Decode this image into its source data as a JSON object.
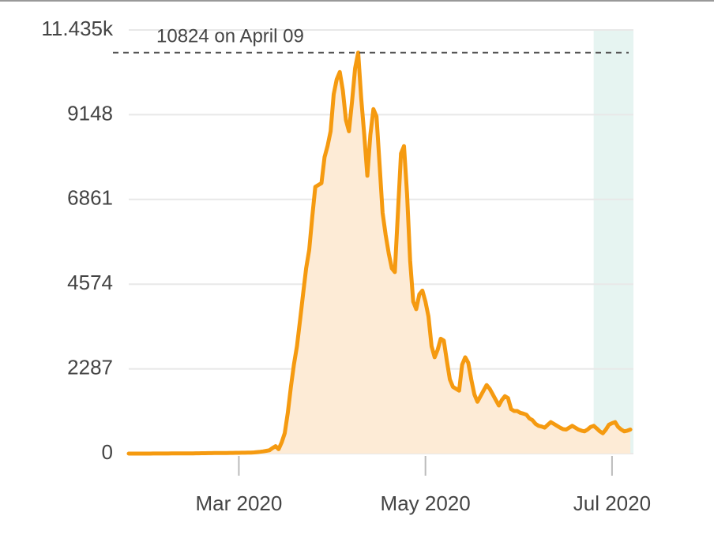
{
  "chart_data": {
    "type": "area-line",
    "annotation": {
      "text": "10824 on April 09",
      "value": 10824
    },
    "series": [
      {
        "color": "#f59a10",
        "fill": "#fdebd6",
        "values": [
          0,
          0,
          0,
          0,
          0,
          1,
          1,
          1,
          2,
          2,
          2,
          3,
          3,
          3,
          4,
          4,
          5,
          5,
          6,
          6,
          7,
          7,
          8,
          9,
          10,
          11,
          12,
          13,
          14,
          15,
          16,
          17,
          18,
          19,
          20,
          21,
          22,
          23,
          24,
          26,
          28,
          32,
          40,
          50,
          60,
          75,
          90,
          150,
          200,
          120,
          300,
          550,
          1100,
          1800,
          2400,
          2900,
          3600,
          4300,
          5000,
          5500,
          6400,
          7200,
          7250,
          7300,
          8000,
          8300,
          8700,
          9700,
          10100,
          10300,
          9800,
          9000,
          8700,
          9500,
          10400,
          10824,
          9600,
          8600,
          7500,
          8600,
          9300,
          9100,
          7800,
          6500,
          5900,
          5400,
          5000,
          4900,
          6500,
          8100,
          8300,
          7000,
          5200,
          4100,
          3900,
          4300,
          4400,
          4100,
          3700,
          2900,
          2600,
          2800,
          3100,
          3050,
          2500,
          2000,
          1800,
          1750,
          1700,
          2400,
          2600,
          2450,
          2000,
          1600,
          1400,
          1550,
          1700,
          1850,
          1750,
          1600,
          1450,
          1300,
          1450,
          1550,
          1500,
          1200,
          1150,
          1150,
          1100,
          1080,
          1050,
          950,
          900,
          800,
          750,
          730,
          700,
          780,
          850,
          800,
          750,
          700,
          660,
          650,
          700,
          750,
          700,
          650,
          620,
          600,
          650,
          720,
          750,
          680,
          600,
          550,
          650,
          780,
          820,
          850,
          720,
          650,
          600,
          620,
          650
        ]
      }
    ],
    "xlim": [
      0,
      165
    ],
    "xticks": [
      {
        "value": 36,
        "label": "Mar 2020"
      },
      {
        "value": 97,
        "label": "May 2020"
      },
      {
        "value": 158,
        "label": "Jul 2020"
      }
    ],
    "ylim": [
      0,
      11435
    ],
    "yticks": [
      0,
      2287,
      4574,
      6861,
      9148,
      {
        "value": 11435,
        "label": "11.435k"
      }
    ],
    "shaded_range": [
      152,
      165
    ],
    "shade_color": "#e6f4f1",
    "grid": true
  }
}
